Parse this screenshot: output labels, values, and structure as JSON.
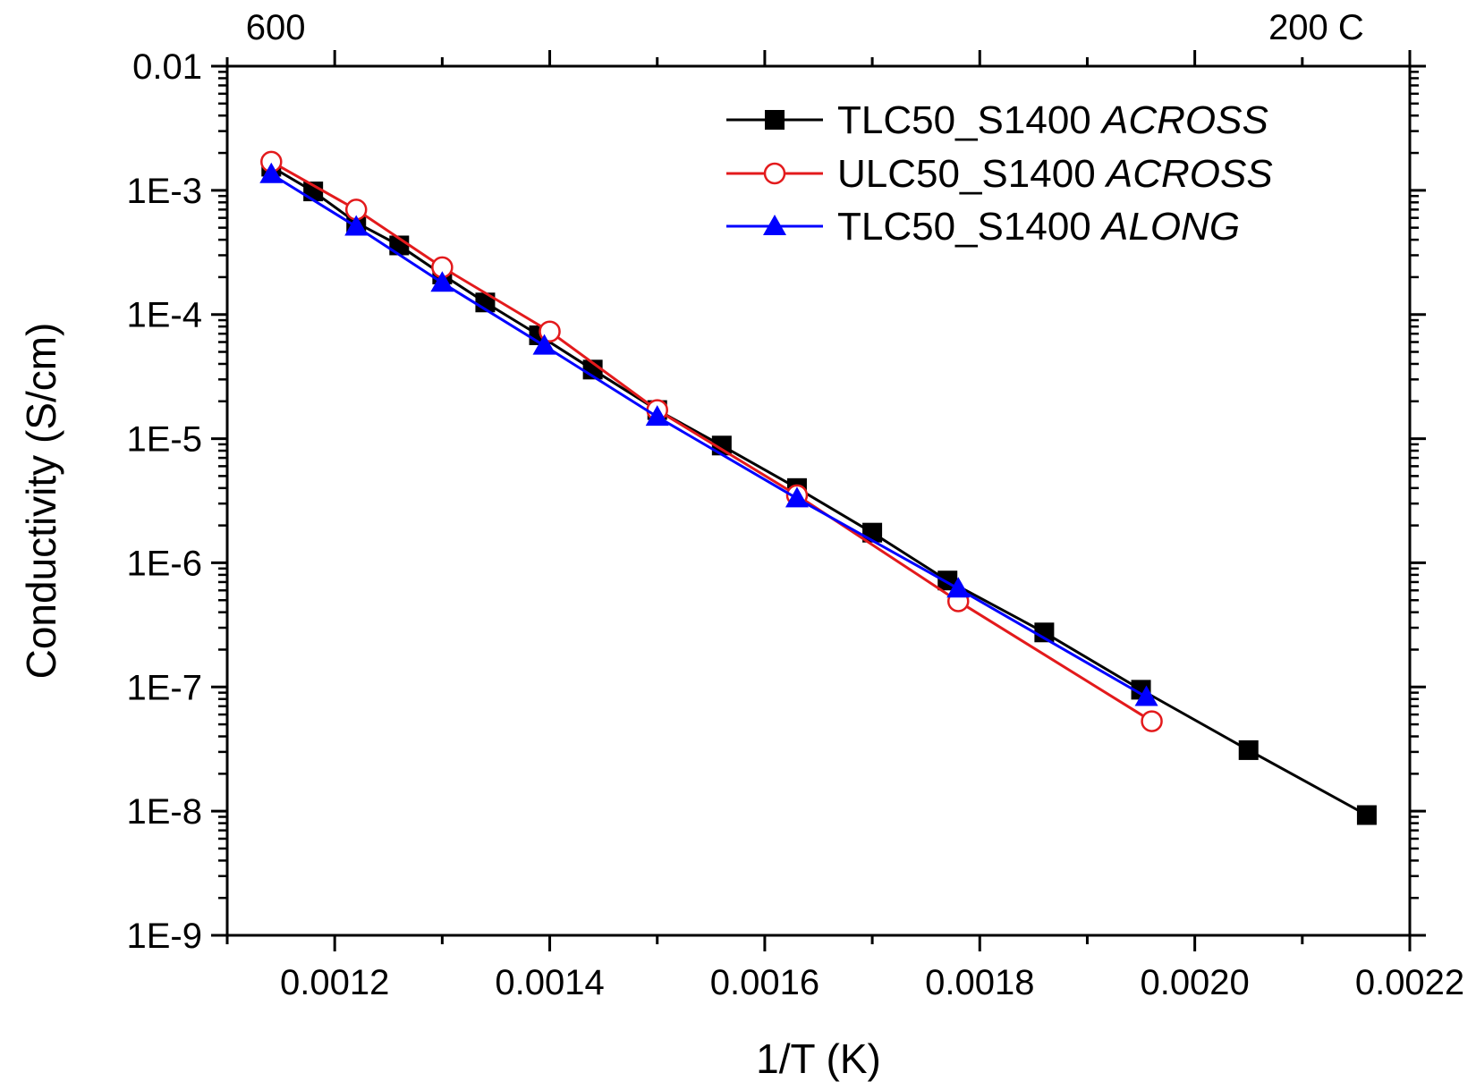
{
  "chart_data": {
    "type": "scatter",
    "xlabel": "1/T (K)",
    "ylabel": "Conductivity (S/cm)",
    "xlim": [
      0.0011,
      0.0022
    ],
    "ylim": [
      1e-09,
      0.01
    ],
    "yscale": "log",
    "x_ticks": [
      "0.0012",
      "0.0014",
      "0.0016",
      "0.0018",
      "0.0020",
      "0.0022"
    ],
    "y_ticks": [
      "0.01",
      "1E-3",
      "1E-4",
      "1E-5",
      "1E-6",
      "1E-7",
      "1E-8",
      "1E-9"
    ],
    "top_axis_labels": [
      {
        "text": "600",
        "x": 0.001145
      },
      {
        "text": "200 C",
        "x": 0.002113
      }
    ],
    "legend_position": "top-right",
    "grid": false,
    "series": [
      {
        "name": "TLC50_S1400",
        "name_suffix": "ACROSS",
        "color": "#000000",
        "marker": "square-filled",
        "x": [
          0.001141,
          0.00118,
          0.00122,
          0.00126,
          0.0013,
          0.00134,
          0.00139,
          0.00144,
          0.0015,
          0.00156,
          0.00163,
          0.0017,
          0.00177,
          0.00186,
          0.00195,
          0.00205,
          0.00216
        ],
        "y": [
          0.00155,
          0.00098,
          0.00055,
          0.00036,
          0.00021,
          0.000125,
          6.8e-05,
          3.6e-05,
          1.7e-05,
          8.8e-06,
          4e-06,
          1.75e-06,
          7.2e-07,
          2.75e-07,
          9.5e-08,
          3.1e-08,
          9.3e-09
        ]
      },
      {
        "name": "ULC50_S1400",
        "name_suffix": "ACROSS",
        "color": "#e31a1c",
        "marker": "circle-open",
        "x": [
          0.001141,
          0.00122,
          0.0013,
          0.0014,
          0.0015,
          0.00163,
          0.00178,
          0.00196
        ],
        "y": [
          0.0017,
          0.0007,
          0.00024,
          7.3e-05,
          1.7e-05,
          3.5e-06,
          4.9e-07,
          5.3e-08
        ]
      },
      {
        "name": "TLC50_S1400",
        "name_suffix": "ALONG",
        "color": "#0000ff",
        "marker": "triangle-filled",
        "x": [
          0.001141,
          0.00122,
          0.0013,
          0.001395,
          0.0015,
          0.00163,
          0.00178,
          0.001955
        ],
        "y": [
          0.00135,
          0.00051,
          0.00018,
          5.6e-05,
          1.5e-05,
          3.3e-06,
          6.2e-07,
          8.3e-08
        ]
      }
    ]
  }
}
